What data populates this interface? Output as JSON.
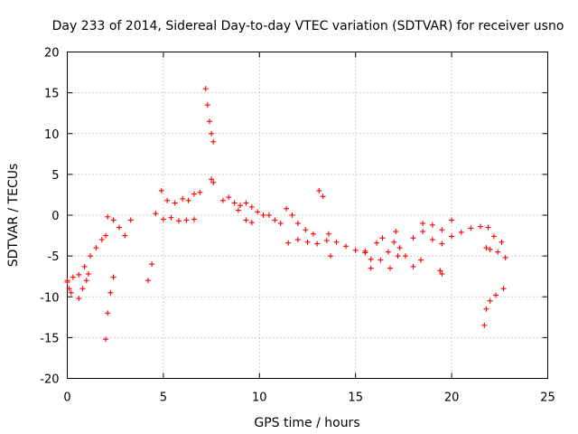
{
  "chart_data": {
    "type": "scatter",
    "title": "Day 233 of 2014, Sidereal Day-to-day VTEC variation (SDTVAR) for receiver usno",
    "xlabel": "GPS time / hours",
    "ylabel": "SDTVAR / TECUs",
    "xlim": [
      0,
      25
    ],
    "ylim": [
      -20,
      20
    ],
    "xticks": [
      0,
      5,
      10,
      15,
      20,
      25
    ],
    "yticks": [
      -20,
      -15,
      -10,
      -5,
      0,
      5,
      10,
      15,
      20
    ],
    "grid": true,
    "marker": "plus",
    "color": "#ff0000",
    "segments": [
      {
        "x": [
          0.0,
          0.3,
          0.6,
          0.9,
          1.2,
          1.5,
          1.8,
          2.0
        ],
        "y": [
          -8.2,
          -7.6,
          -7.3,
          -6.3,
          -5.0,
          -4.0,
          -3.0,
          -2.5
        ]
      },
      {
        "x": [
          0.0,
          0.1,
          0.2
        ],
        "y": [
          -8.0,
          -9.0,
          -9.5
        ]
      },
      {
        "x": [
          0.6,
          0.8,
          1.0,
          1.1
        ],
        "y": [
          -10.2,
          -9.0,
          -8.0,
          -7.2
        ]
      },
      {
        "x": [
          2.0,
          2.1,
          2.25,
          2.4
        ],
        "y": [
          -15.2,
          -12.0,
          -9.5,
          -7.6
        ]
      },
      {
        "x": [
          2.1,
          2.4,
          2.7,
          3.0,
          3.3
        ],
        "y": [
          -0.2,
          -0.6,
          -1.5,
          -2.5,
          -0.6
        ]
      },
      {
        "x": [
          4.2,
          4.4
        ],
        "y": [
          -8.0,
          -6.0
        ]
      },
      {
        "x": [
          4.6,
          4.9,
          5.2,
          5.6,
          6.0,
          6.3
        ],
        "y": [
          0.2,
          3.0,
          1.8,
          1.5,
          2.0,
          1.8
        ]
      },
      {
        "x": [
          5.0,
          5.4,
          5.8,
          6.2,
          6.6
        ],
        "y": [
          -0.5,
          -0.3,
          -0.7,
          -0.6,
          -0.5
        ]
      },
      {
        "x": [
          6.6,
          6.9
        ],
        "y": [
          2.6,
          2.8
        ]
      },
      {
        "x": [
          7.2,
          7.3,
          7.4,
          7.5,
          7.6
        ],
        "y": [
          15.5,
          13.5,
          11.5,
          10.0,
          9.0
        ]
      },
      {
        "x": [
          7.5,
          7.6
        ],
        "y": [
          4.4,
          4.0
        ]
      },
      {
        "x": [
          8.1,
          8.4,
          8.7,
          9.0,
          9.3,
          9.6,
          9.9,
          10.2
        ],
        "y": [
          1.8,
          2.2,
          1.5,
          1.2,
          1.5,
          1.0,
          0.4,
          0.0
        ]
      },
      {
        "x": [
          8.9,
          9.3,
          9.6
        ],
        "y": [
          0.6,
          -0.6,
          -0.9
        ]
      },
      {
        "x": [
          10.5,
          10.8,
          11.1,
          11.4,
          11.7,
          12.0,
          12.4,
          12.8
        ],
        "y": [
          0.0,
          -0.6,
          -1.0,
          0.8,
          0.0,
          -1.0,
          -1.8,
          -2.3
        ]
      },
      {
        "x": [
          11.5,
          12.0,
          12.5,
          13.0,
          13.5,
          14.0,
          14.5,
          15.0,
          15.5
        ],
        "y": [
          -3.4,
          -3.0,
          -3.3,
          -3.5,
          -3.1,
          -3.3,
          -3.8,
          -4.3,
          -4.6
        ]
      },
      {
        "x": [
          13.1,
          13.3
        ],
        "y": [
          3.0,
          2.3
        ]
      },
      {
        "x": [
          13.6,
          13.7
        ],
        "y": [
          -2.3,
          -5.0
        ]
      },
      {
        "x": [
          15.5,
          15.8,
          16.1,
          16.4,
          16.7,
          17.0,
          17.3
        ],
        "y": [
          -4.4,
          -5.4,
          -3.4,
          -2.8,
          -4.5,
          -3.3,
          -4.0
        ]
      },
      {
        "x": [
          15.8,
          16.3,
          16.8,
          17.2
        ],
        "y": [
          -6.5,
          -5.5,
          -6.5,
          -5.0
        ]
      },
      {
        "x": [
          17.1,
          17.6,
          18.0,
          18.4
        ],
        "y": [
          -2.0,
          -5.0,
          -6.3,
          -5.5
        ]
      },
      {
        "x": [
          18.0,
          18.5,
          19.0,
          19.5,
          20.0,
          20.5,
          21.0,
          21.5,
          21.9,
          22.2,
          22.6
        ],
        "y": [
          -2.8,
          -2.0,
          -3.0,
          -3.5,
          -2.6,
          -2.1,
          -1.6,
          -1.4,
          -1.5,
          -2.6,
          -3.3
        ]
      },
      {
        "x": [
          18.5,
          19.0,
          19.5,
          20.0
        ],
        "y": [
          -1.0,
          -1.2,
          -1.8,
          -0.6
        ]
      },
      {
        "x": [
          19.4,
          19.5
        ],
        "y": [
          -6.8,
          -7.2
        ]
      },
      {
        "x": [
          21.8,
          22.0,
          22.4,
          22.8
        ],
        "y": [
          -4.0,
          -4.2,
          -4.5,
          -5.2
        ]
      },
      {
        "x": [
          21.7,
          21.8,
          22.0,
          22.3,
          22.7
        ],
        "y": [
          -13.5,
          -11.5,
          -10.5,
          -9.8,
          -9.0
        ]
      }
    ]
  }
}
